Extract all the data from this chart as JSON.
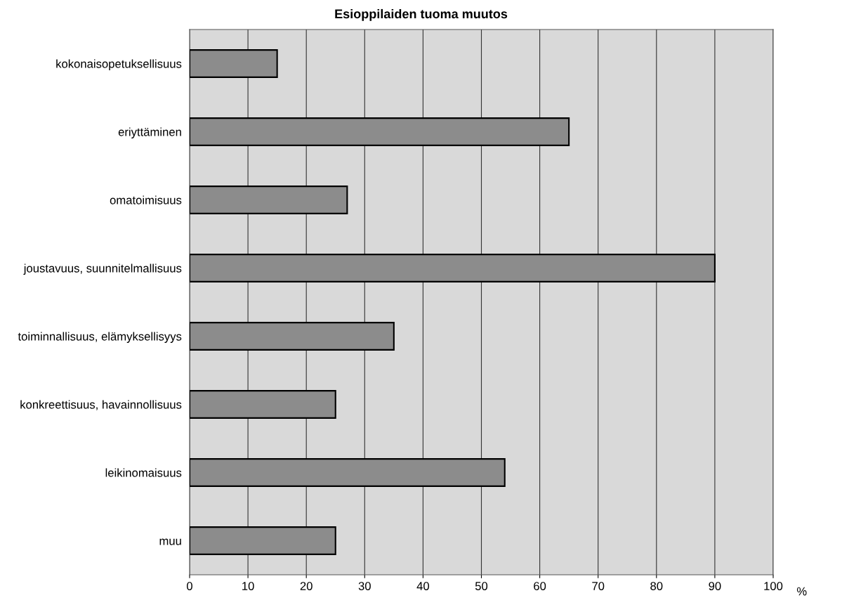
{
  "chart_data": {
    "type": "bar",
    "orientation": "horizontal",
    "title": "Esioppilaiden tuoma muutos",
    "xlabel": "%",
    "categories": [
      "kokonaisopetuksellisuus",
      "eriyttäminen",
      "omatoimisuus",
      "joustavuus, suunnitelmallisuus",
      "toiminnallisuus, elämyksellisyys",
      "konkreettisuus, havainnollisuus",
      "leikinomaisuus",
      "muu"
    ],
    "values": [
      15,
      65,
      27,
      90,
      35,
      25,
      54,
      25
    ],
    "color": "#8c8c8c",
    "xlim": [
      0,
      100
    ],
    "xticks": [
      0,
      10,
      20,
      30,
      40,
      50,
      60,
      70,
      80,
      90,
      100
    ],
    "grid": "x"
  }
}
